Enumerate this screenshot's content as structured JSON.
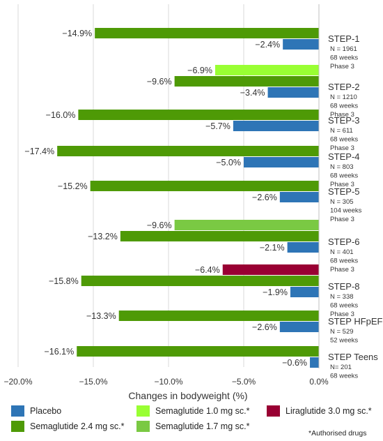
{
  "chart_data": {
    "type": "bar",
    "orientation": "horizontal",
    "xlabel": "Changes in bodyweight (%)",
    "xlim": [
      -21,
      0
    ],
    "xticks": [
      -20,
      -15,
      -10,
      -5,
      0
    ],
    "xtick_labels": [
      "−20.0%",
      "−15.0%",
      "−10.0%",
      "−5.0%",
      "0.0%"
    ],
    "grid": "vertical",
    "trials": [
      {
        "name": "STEP-1",
        "details": [
          "N = 1961",
          "68 weeks",
          "Phase 3"
        ],
        "bars": [
          {
            "series": "sema24",
            "value": -14.9,
            "label": "−14.9%"
          },
          {
            "series": "placebo",
            "value": -2.4,
            "label": "−2.4%"
          }
        ]
      },
      {
        "name": "STEP-2",
        "details": [
          "N = 1210",
          "68 weeks",
          "Phase 3"
        ],
        "bars": [
          {
            "series": "sema10",
            "value": -6.9,
            "label": "−6.9%"
          },
          {
            "series": "sema24",
            "value": -9.6,
            "label": "−9.6%"
          },
          {
            "series": "placebo",
            "value": -3.4,
            "label": "−3.4%"
          }
        ]
      },
      {
        "name": "STEP-3",
        "details": [
          "N = 611",
          "68 weeks",
          "Phase 3"
        ],
        "bars": [
          {
            "series": "sema24",
            "value": -16.0,
            "label": "−16.0%"
          },
          {
            "series": "placebo",
            "value": -5.7,
            "label": "−5.7%"
          }
        ]
      },
      {
        "name": "STEP-4",
        "details": [
          "N = 803",
          "68 weeks",
          "Phase 3"
        ],
        "bars": [
          {
            "series": "sema24",
            "value": -17.4,
            "label": "−17.4%"
          },
          {
            "series": "placebo",
            "value": -5.0,
            "label": "−5.0%"
          }
        ]
      },
      {
        "name": "STEP-5",
        "details": [
          "N = 305",
          "104 weeks",
          "Phase 3"
        ],
        "bars": [
          {
            "series": "sema24",
            "value": -15.2,
            "label": "−15.2%"
          },
          {
            "series": "placebo",
            "value": -2.6,
            "label": "−2.6%"
          }
        ]
      },
      {
        "name": "STEP-6",
        "details": [
          "N = 401",
          "68 weeks",
          "Phase 3"
        ],
        "bars": [
          {
            "series": "sema17",
            "value": -9.6,
            "label": "−9.6%"
          },
          {
            "series": "sema24",
            "value": -13.2,
            "label": "−13.2%"
          },
          {
            "series": "placebo",
            "value": -2.1,
            "label": "−2.1%"
          }
        ]
      },
      {
        "name": "STEP-8",
        "details": [
          "N = 338",
          "68 weeks",
          "Phase 3"
        ],
        "bars": [
          {
            "series": "lira30",
            "value": -6.4,
            "label": "−6.4%"
          },
          {
            "series": "sema24",
            "value": -15.8,
            "label": "−15.8%"
          },
          {
            "series": "placebo",
            "value": -1.9,
            "label": "−1.9%"
          }
        ]
      },
      {
        "name": "STEP HFpEF",
        "details": [
          "N = 529",
          "52 weeks"
        ],
        "bars": [
          {
            "series": "sema24",
            "value": -13.3,
            "label": "−13.3%"
          },
          {
            "series": "placebo",
            "value": -2.6,
            "label": "−2.6%"
          }
        ]
      },
      {
        "name": "STEP Teens",
        "details": [
          "N= 201",
          "68 weeks"
        ],
        "bars": [
          {
            "series": "sema24",
            "value": -16.1,
            "label": "−16.1%"
          },
          {
            "series": "placebo",
            "value": -0.6,
            "label": "−0.6%"
          }
        ]
      }
    ],
    "series": [
      {
        "key": "placebo",
        "name": "Placebo",
        "color": "#2E75B6"
      },
      {
        "key": "sema24",
        "name": "Semaglutide  2.4 mg sc.*",
        "color": "#4E9A06"
      },
      {
        "key": "sema10",
        "name": "Semaglutide  1.0 mg sc.*",
        "color": "#99FF33"
      },
      {
        "key": "sema17",
        "name": "Semaglutide  1.7 mg sc.*",
        "color": "#7AC943"
      },
      {
        "key": "lira30",
        "name": "Liraglutide  3.0 mg sc.*",
        "color": "#990033"
      }
    ],
    "legend_position": "bottom",
    "footnote": "*Authorised drugs"
  }
}
